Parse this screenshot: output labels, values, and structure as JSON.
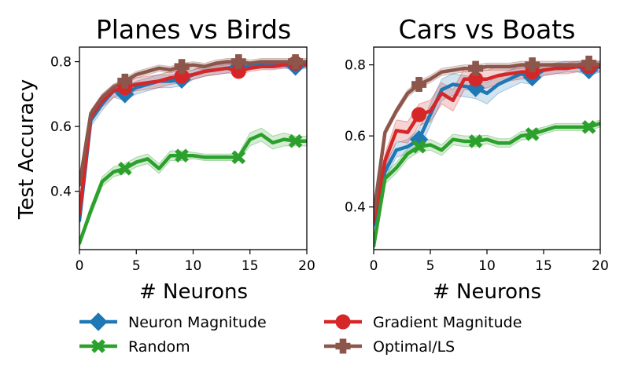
{
  "chart_data": [
    {
      "type": "line",
      "title": "Planes vs Birds",
      "xlabel": "# Neurons",
      "ylabel": "Test Accuracy",
      "xlim": [
        0,
        20
      ],
      "ylim": [
        0.22,
        0.845
      ],
      "xticks": [
        0,
        5,
        10,
        15,
        20
      ],
      "yticks": [
        0.4,
        0.6,
        0.8
      ],
      "ytick_labels": [
        "0.4",
        "0.6",
        "0.8"
      ],
      "grid": false,
      "series": [
        {
          "name": "Neuron Magnitude",
          "color": "#1f77b4",
          "marker": "diamond",
          "markers_at": [
            4,
            9,
            14,
            19
          ],
          "x": [
            0,
            1,
            2,
            3,
            4,
            5,
            6,
            7,
            8,
            9,
            10,
            11,
            12,
            13,
            14,
            15,
            16,
            17,
            18,
            19,
            20
          ],
          "y": [
            0.31,
            0.62,
            0.67,
            0.71,
            0.7,
            0.72,
            0.73,
            0.74,
            0.74,
            0.745,
            0.76,
            0.77,
            0.775,
            0.78,
            0.785,
            0.785,
            0.79,
            0.79,
            0.79,
            0.785,
            0.79
          ],
          "band": [
            0.02,
            0.02,
            0.02,
            0.02,
            0.02,
            0.02,
            0.02,
            0.02,
            0.02,
            0.02,
            0.015,
            0.015,
            0.015,
            0.015,
            0.01,
            0.01,
            0.01,
            0.01,
            0.01,
            0.01,
            0.01
          ]
        },
        {
          "name": "Gradient Magnitude",
          "color": "#d62728",
          "marker": "circle",
          "markers_at": [
            4,
            9,
            14,
            19
          ],
          "x": [
            0,
            1,
            2,
            3,
            4,
            5,
            6,
            7,
            8,
            9,
            10,
            11,
            12,
            13,
            14,
            15,
            16,
            17,
            18,
            19,
            20
          ],
          "y": [
            0.33,
            0.63,
            0.68,
            0.71,
            0.72,
            0.73,
            0.735,
            0.74,
            0.75,
            0.755,
            0.76,
            0.77,
            0.775,
            0.78,
            0.77,
            0.78,
            0.785,
            0.785,
            0.79,
            0.795,
            0.79
          ],
          "band": [
            0.02,
            0.02,
            0.02,
            0.02,
            0.02,
            0.02,
            0.02,
            0.02,
            0.02,
            0.02,
            0.015,
            0.015,
            0.015,
            0.015,
            0.01,
            0.01,
            0.01,
            0.01,
            0.01,
            0.01,
            0.01
          ]
        },
        {
          "name": "Random",
          "color": "#2ca02c",
          "marker": "x",
          "markers_at": [
            4,
            9,
            14,
            19
          ],
          "x": [
            0,
            1,
            2,
            3,
            4,
            5,
            6,
            7,
            8,
            9,
            10,
            11,
            12,
            13,
            14,
            15,
            16,
            17,
            18,
            19,
            20
          ],
          "y": [
            0.24,
            0.34,
            0.43,
            0.46,
            0.47,
            0.49,
            0.5,
            0.47,
            0.51,
            0.51,
            0.51,
            0.505,
            0.505,
            0.505,
            0.505,
            0.56,
            0.575,
            0.55,
            0.56,
            0.555,
            0.555
          ],
          "band": [
            0.01,
            0.015,
            0.015,
            0.015,
            0.015,
            0.015,
            0.015,
            0.015,
            0.015,
            0.015,
            0.01,
            0.01,
            0.01,
            0.01,
            0.01,
            0.02,
            0.02,
            0.02,
            0.02,
            0.015,
            0.015
          ]
        },
        {
          "name": "Optimal/LS",
          "color": "#8c564b",
          "marker": "plus",
          "markers_at": [
            4,
            9,
            14,
            19
          ],
          "x": [
            0,
            1,
            2,
            3,
            4,
            5,
            6,
            7,
            8,
            9,
            10,
            11,
            12,
            13,
            14,
            15,
            16,
            17,
            18,
            19,
            20
          ],
          "y": [
            0.42,
            0.64,
            0.69,
            0.72,
            0.74,
            0.76,
            0.77,
            0.78,
            0.775,
            0.785,
            0.79,
            0.785,
            0.795,
            0.8,
            0.8,
            0.795,
            0.8,
            0.8,
            0.8,
            0.8,
            0.8
          ],
          "band": [
            0.01,
            0.01,
            0.01,
            0.01,
            0.01,
            0.01,
            0.01,
            0.01,
            0.01,
            0.01,
            0.01,
            0.01,
            0.01,
            0.01,
            0.01,
            0.01,
            0.01,
            0.01,
            0.01,
            0.01,
            0.01
          ]
        }
      ]
    },
    {
      "type": "line",
      "title": "Cars vs Boats",
      "xlabel": "# Neurons",
      "ylabel": "",
      "xlim": [
        0,
        20
      ],
      "ylim": [
        0.28,
        0.85
      ],
      "xticks": [
        0,
        5,
        10,
        15,
        20
      ],
      "yticks": [
        0.4,
        0.6,
        0.8
      ],
      "ytick_labels": [
        "0.4",
        "0.6",
        "0.8"
      ],
      "grid": false,
      "series": [
        {
          "name": "Neuron Magnitude",
          "color": "#1f77b4",
          "marker": "diamond",
          "markers_at": [
            4,
            9,
            14,
            19
          ],
          "x": [
            0,
            1,
            2,
            3,
            4,
            5,
            6,
            7,
            8,
            9,
            10,
            11,
            12,
            13,
            14,
            15,
            16,
            17,
            18,
            19,
            20
          ],
          "y": [
            0.35,
            0.5,
            0.56,
            0.57,
            0.59,
            0.66,
            0.73,
            0.745,
            0.74,
            0.735,
            0.72,
            0.745,
            0.76,
            0.775,
            0.765,
            0.785,
            0.79,
            0.795,
            0.795,
            0.785,
            0.795
          ],
          "band": [
            0.02,
            0.02,
            0.02,
            0.02,
            0.03,
            0.03,
            0.03,
            0.03,
            0.03,
            0.03,
            0.03,
            0.025,
            0.025,
            0.025,
            0.02,
            0.015,
            0.015,
            0.015,
            0.015,
            0.015,
            0.015
          ]
        },
        {
          "name": "Gradient Magnitude",
          "color": "#d62728",
          "marker": "circle",
          "markers_at": [
            4,
            9,
            14,
            19
          ],
          "x": [
            0,
            1,
            2,
            3,
            4,
            5,
            6,
            7,
            8,
            9,
            10,
            11,
            12,
            13,
            14,
            15,
            16,
            17,
            18,
            19,
            20
          ],
          "y": [
            0.36,
            0.53,
            0.615,
            0.61,
            0.66,
            0.67,
            0.72,
            0.7,
            0.76,
            0.76,
            0.76,
            0.77,
            0.775,
            0.78,
            0.78,
            0.785,
            0.79,
            0.79,
            0.795,
            0.795,
            0.795
          ],
          "band": [
            0.02,
            0.02,
            0.03,
            0.03,
            0.03,
            0.03,
            0.03,
            0.03,
            0.03,
            0.03,
            0.025,
            0.025,
            0.02,
            0.02,
            0.02,
            0.015,
            0.015,
            0.015,
            0.015,
            0.015,
            0.015
          ]
        },
        {
          "name": "Random",
          "color": "#2ca02c",
          "marker": "x",
          "markers_at": [
            4,
            9,
            14,
            19
          ],
          "x": [
            0,
            1,
            2,
            3,
            4,
            5,
            6,
            7,
            8,
            9,
            10,
            11,
            12,
            13,
            14,
            15,
            16,
            17,
            18,
            19,
            20
          ],
          "y": [
            0.29,
            0.48,
            0.51,
            0.55,
            0.57,
            0.575,
            0.56,
            0.59,
            0.585,
            0.585,
            0.59,
            0.58,
            0.58,
            0.6,
            0.605,
            0.615,
            0.625,
            0.625,
            0.625,
            0.625,
            0.635
          ],
          "band": [
            0.01,
            0.015,
            0.015,
            0.015,
            0.015,
            0.015,
            0.015,
            0.015,
            0.015,
            0.015,
            0.012,
            0.012,
            0.012,
            0.012,
            0.012,
            0.01,
            0.01,
            0.01,
            0.01,
            0.01,
            0.01
          ]
        },
        {
          "name": "Optimal/LS",
          "color": "#8c564b",
          "marker": "plus",
          "markers_at": [
            4,
            9,
            14,
            19
          ],
          "x": [
            0,
            1,
            2,
            3,
            4,
            5,
            6,
            7,
            8,
            9,
            10,
            11,
            12,
            13,
            14,
            15,
            16,
            17,
            18,
            19,
            20
          ],
          "y": [
            0.38,
            0.61,
            0.67,
            0.72,
            0.745,
            0.76,
            0.78,
            0.785,
            0.79,
            0.79,
            0.795,
            0.795,
            0.795,
            0.8,
            0.8,
            0.8,
            0.8,
            0.8,
            0.8,
            0.805,
            0.8
          ],
          "band": [
            0.01,
            0.01,
            0.01,
            0.01,
            0.01,
            0.01,
            0.01,
            0.01,
            0.01,
            0.01,
            0.01,
            0.01,
            0.01,
            0.01,
            0.01,
            0.01,
            0.01,
            0.01,
            0.01,
            0.01,
            0.01
          ]
        }
      ]
    }
  ],
  "legend": {
    "placement": "bottom",
    "items": [
      {
        "label": "Neuron Magnitude",
        "color": "#1f77b4",
        "marker": "diamond"
      },
      {
        "label": "Gradient Magnitude",
        "color": "#d62728",
        "marker": "circle"
      },
      {
        "label": "Random",
        "color": "#2ca02c",
        "marker": "x"
      },
      {
        "label": "Optimal/LS",
        "color": "#8c564b",
        "marker": "plus"
      }
    ]
  }
}
